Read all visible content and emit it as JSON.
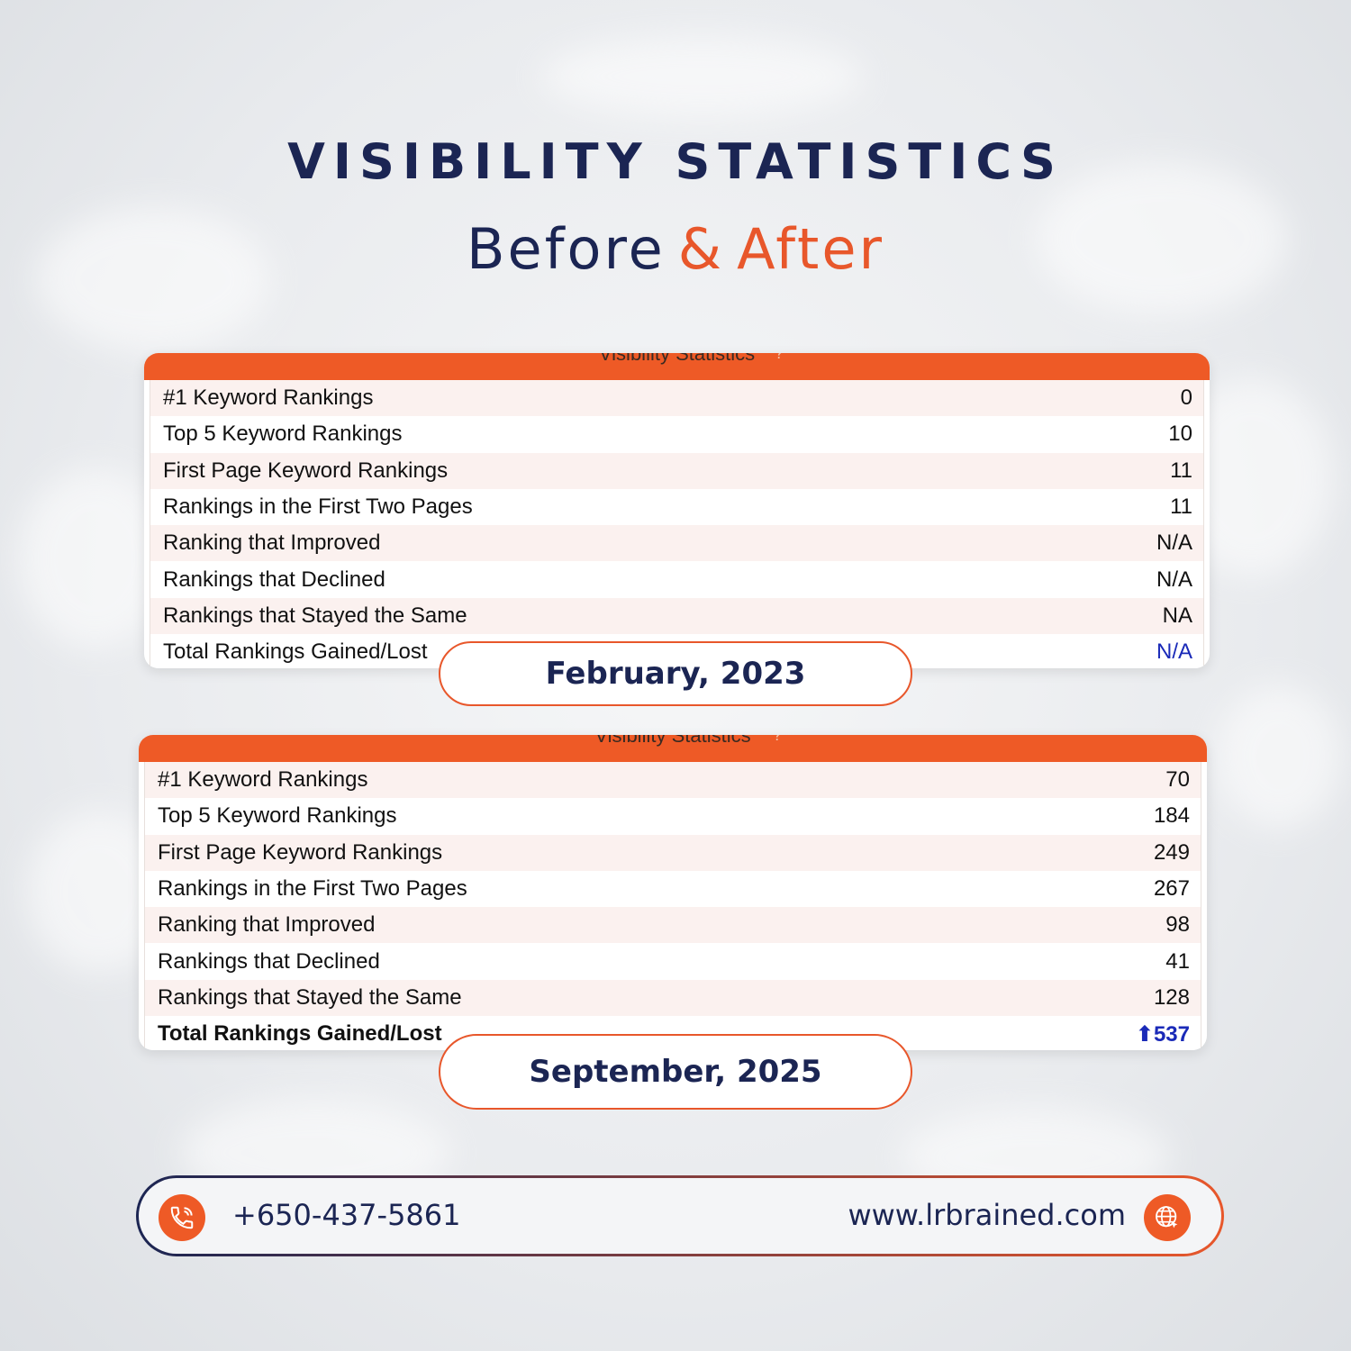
{
  "heading": {
    "title": "VISIBILITY STATISTICS",
    "subtitle_before": "Before",
    "subtitle_amp": "&",
    "subtitle_after": "After"
  },
  "panels": [
    {
      "header": "Visibility Statistics",
      "header_help": "?",
      "rows": [
        {
          "label": "#1 Keyword Rankings",
          "value": "0"
        },
        {
          "label": "Top 5 Keyword Rankings",
          "value": "10"
        },
        {
          "label": "First Page Keyword Rankings",
          "value": "11"
        },
        {
          "label": "Rankings in the First Two Pages",
          "value": "11"
        },
        {
          "label": "Ranking that Improved",
          "value": "N/A"
        },
        {
          "label": "Rankings that Declined",
          "value": "N/A"
        },
        {
          "label": "Rankings that Stayed the Same",
          "value": "NA"
        },
        {
          "label": "Total Rankings Gained/Lost",
          "value": "N/A"
        }
      ],
      "date_label": "February, 2023"
    },
    {
      "header": "Visibility Statistics",
      "header_help": "?",
      "rows": [
        {
          "label": "#1 Keyword Rankings",
          "value": "70"
        },
        {
          "label": "Top 5 Keyword Rankings",
          "value": "184"
        },
        {
          "label": "First Page Keyword Rankings",
          "value": "249"
        },
        {
          "label": "Rankings in the First Two Pages",
          "value": "267"
        },
        {
          "label": "Ranking that Improved",
          "value": "98"
        },
        {
          "label": "Rankings that Declined",
          "value": "41"
        },
        {
          "label": "Rankings that Stayed the Same",
          "value": "128"
        },
        {
          "label": "Total Rankings Gained/Lost",
          "value": "⬆537"
        }
      ],
      "date_label": "September, 2025"
    }
  ],
  "footer": {
    "phone": "+650-437-5861",
    "phone_icon": "phone-icon",
    "website": "www.lrbrained.com",
    "website_icon": "globe-icon"
  },
  "colors": {
    "navy": "#1b2553",
    "orange": "#e8572b",
    "total_value_blue": "#1a2ab8"
  }
}
